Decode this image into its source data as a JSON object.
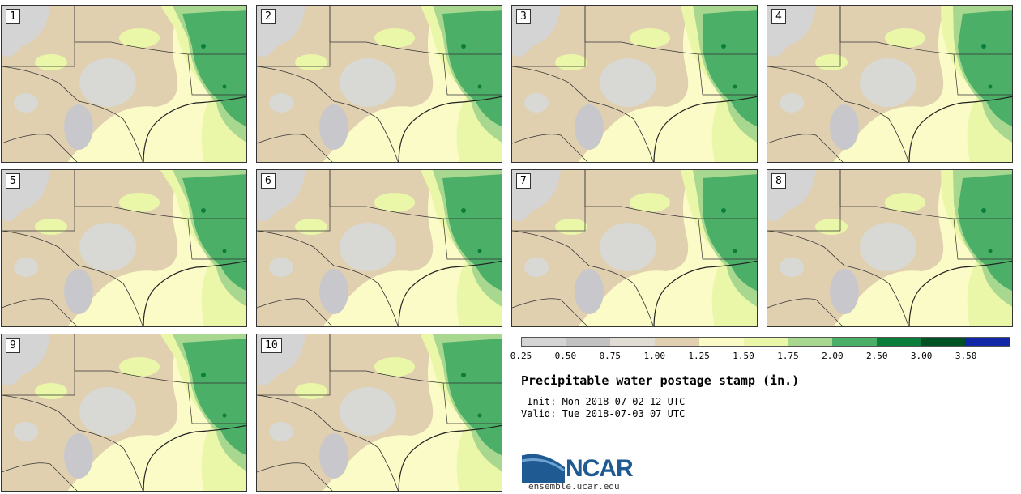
{
  "panels": [
    {
      "label": "1"
    },
    {
      "label": "2"
    },
    {
      "label": "3"
    },
    {
      "label": "4"
    },
    {
      "label": "5"
    },
    {
      "label": "6"
    },
    {
      "label": "7"
    },
    {
      "label": "8"
    },
    {
      "label": "9"
    },
    {
      "label": "10"
    }
  ],
  "colorbar": {
    "colors": [
      "#d4d4d4",
      "#c2c2c2",
      "#e0dcd4",
      "#e0d0b0",
      "#fbfbc8",
      "#ebf7a8",
      "#a8d890",
      "#4caf68",
      "#0c7e3c",
      "#005224",
      "#1228a8"
    ],
    "ticks": [
      "0.25",
      "0.50",
      "0.75",
      "1.00",
      "1.25",
      "1.50",
      "1.75",
      "2.00",
      "2.50",
      "3.00",
      "3.50"
    ]
  },
  "title": "Precipitable water postage stamp (in.)",
  "init": " Init: Mon 2018-07-02 12 UTC",
  "valid": "Valid: Tue 2018-07-03 07 UTC",
  "logo": {
    "text": "NCAR",
    "site": "ensemble.ucar.edu"
  }
}
